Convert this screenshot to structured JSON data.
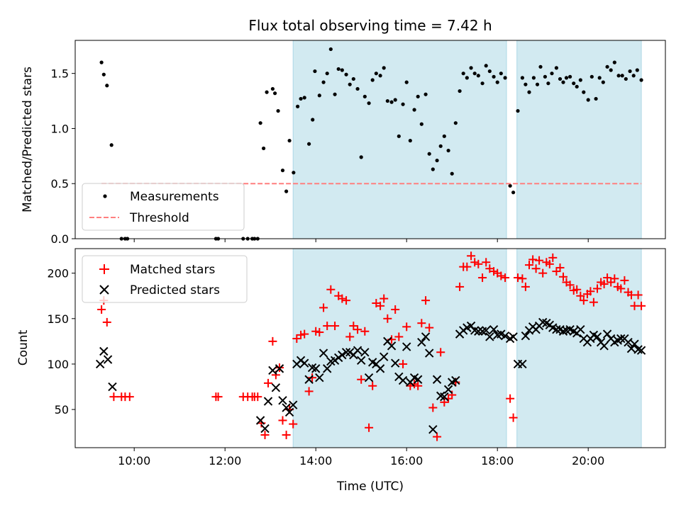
{
  "chart_data": [
    {
      "type": "scatter",
      "title": "Flux total observing time = 7.42 h",
      "xlabel": "",
      "ylabel": "Matched/Predicted stars",
      "ylim": [
        0,
        1.8
      ],
      "yticks": [
        "0.0",
        "0.5",
        "1.0",
        "1.5"
      ],
      "xlim": [
        8.7,
        21.7
      ],
      "grid": false,
      "legend_position": "lower-left",
      "shaded_intervals": [
        [
          13.5,
          18.2
        ],
        [
          18.43,
          21.17
        ]
      ],
      "shade_color": "#add8e6",
      "series": [
        {
          "name": "Measurements",
          "style": "dot",
          "color": "#000000",
          "x": [
            9.28,
            9.33,
            9.4,
            9.5,
            9.72,
            9.8,
            9.85,
            11.8,
            11.85,
            12.4,
            12.5,
            12.6,
            12.65,
            12.72,
            12.78,
            12.85,
            12.92,
            13.05,
            13.1,
            13.17,
            13.27,
            13.35,
            13.42,
            13.51,
            13.6,
            13.67,
            13.75,
            13.85,
            13.93,
            13.98,
            14.08,
            14.17,
            14.25,
            14.33,
            14.42,
            14.5,
            14.58,
            14.67,
            14.75,
            14.83,
            14.92,
            15.0,
            15.08,
            15.17,
            15.25,
            15.33,
            15.42,
            15.5,
            15.58,
            15.67,
            15.75,
            15.83,
            15.92,
            16.0,
            16.08,
            16.17,
            16.25,
            16.33,
            16.42,
            16.5,
            16.58,
            16.67,
            16.75,
            16.83,
            16.92,
            17.0,
            17.08,
            17.17,
            17.25,
            17.33,
            17.42,
            17.5,
            17.58,
            17.67,
            17.75,
            17.83,
            17.92,
            18.0,
            18.08,
            18.17,
            18.28,
            18.35,
            18.45,
            18.55,
            18.62,
            18.7,
            18.8,
            18.88,
            18.95,
            19.05,
            19.12,
            19.2,
            19.3,
            19.38,
            19.45,
            19.52,
            19.6,
            19.68,
            19.75,
            19.83,
            19.9,
            20.0,
            20.08,
            20.17,
            20.25,
            20.33,
            20.42,
            20.5,
            20.58,
            20.67,
            20.75,
            20.83,
            20.92,
            21.0,
            21.08,
            21.17
          ],
          "y": [
            1.6,
            1.49,
            1.39,
            0.85,
            0.0,
            0.0,
            0.0,
            0.0,
            0.0,
            0.0,
            0.0,
            0.0,
            0.0,
            0.0,
            1.05,
            0.82,
            1.33,
            1.36,
            1.32,
            1.16,
            0.62,
            0.43,
            0.89,
            0.6,
            1.2,
            1.27,
            1.28,
            0.86,
            1.08,
            1.52,
            1.3,
            1.42,
            1.5,
            1.72,
            1.31,
            1.54,
            1.53,
            1.49,
            1.4,
            1.45,
            1.36,
            0.74,
            1.29,
            1.23,
            1.44,
            1.5,
            1.48,
            1.55,
            1.25,
            1.24,
            1.26,
            0.93,
            1.22,
            1.42,
            0.89,
            1.17,
            1.29,
            1.04,
            1.31,
            0.77,
            0.63,
            0.71,
            0.84,
            0.93,
            0.8,
            0.59,
            1.05,
            1.34,
            1.5,
            1.46,
            1.55,
            1.5,
            1.48,
            1.41,
            1.57,
            1.52,
            1.47,
            1.42,
            1.5,
            1.46,
            0.48,
            0.42,
            1.16,
            1.46,
            1.4,
            1.33,
            1.46,
            1.4,
            1.56,
            1.47,
            1.41,
            1.5,
            1.55,
            1.45,
            1.42,
            1.46,
            1.47,
            1.41,
            1.38,
            1.44,
            1.33,
            1.26,
            1.47,
            1.27,
            1.46,
            1.42,
            1.56,
            1.53,
            1.6,
            1.48,
            1.48,
            1.45,
            1.52,
            1.48,
            1.53,
            1.44
          ]
        },
        {
          "name": "Threshold",
          "style": "dashed-line",
          "color": "#ff7f7f",
          "x": [
            9.28,
            21.17
          ],
          "y": [
            0.5,
            0.5
          ]
        }
      ]
    },
    {
      "type": "scatter",
      "title": "",
      "xlabel": "Time (UTC)",
      "ylabel": "Count",
      "ylim": [
        8,
        227
      ],
      "yticks": [
        "50",
        "100",
        "150",
        "200"
      ],
      "xlim": [
        8.7,
        21.7
      ],
      "xticks": [
        {
          "value": 10,
          "label": "10:00"
        },
        {
          "value": 12,
          "label": "12:00"
        },
        {
          "value": 14,
          "label": "14:00"
        },
        {
          "value": 16,
          "label": "16:00"
        },
        {
          "value": 18,
          "label": "18:00"
        },
        {
          "value": 20,
          "label": "20:00"
        }
      ],
      "grid": false,
      "legend_position": "top-left",
      "shaded_intervals": [
        [
          13.5,
          18.2
        ],
        [
          18.43,
          21.17
        ]
      ],
      "shade_color": "#add8e6",
      "series": [
        {
          "name": "Matched stars",
          "style": "plus",
          "color": "#ff0000",
          "x": [
            9.28,
            9.33,
            9.4,
            9.55,
            9.72,
            9.8,
            9.9,
            11.8,
            11.85,
            12.4,
            12.5,
            12.6,
            12.65,
            12.72,
            12.8,
            12.88,
            12.95,
            13.05,
            13.12,
            13.2,
            13.27,
            13.35,
            13.42,
            13.5,
            13.58,
            13.67,
            13.75,
            13.85,
            13.92,
            14.0,
            14.08,
            14.17,
            14.25,
            14.33,
            14.42,
            14.5,
            14.58,
            14.67,
            14.75,
            14.83,
            14.92,
            15.0,
            15.08,
            15.17,
            15.25,
            15.33,
            15.42,
            15.5,
            15.58,
            15.67,
            15.75,
            15.83,
            15.92,
            16.0,
            16.08,
            16.17,
            16.25,
            16.33,
            16.42,
            16.5,
            16.58,
            16.67,
            16.75,
            16.83,
            16.92,
            17.0,
            17.08,
            17.17,
            17.25,
            17.33,
            17.42,
            17.5,
            17.58,
            17.67,
            17.75,
            17.83,
            17.92,
            18.0,
            18.08,
            18.17,
            18.28,
            18.35,
            18.45,
            18.55,
            18.62,
            18.7,
            18.78,
            18.85,
            18.92,
            19.0,
            19.08,
            19.15,
            19.22,
            19.3,
            19.38,
            19.45,
            19.52,
            19.6,
            19.68,
            19.75,
            19.83,
            19.9,
            19.98,
            20.05,
            20.12,
            20.2,
            20.28,
            20.35,
            20.42,
            20.5,
            20.58,
            20.65,
            20.72,
            20.8,
            20.88,
            20.95,
            21.02,
            21.1,
            21.17
          ],
          "y": [
            160,
            170,
            146,
            64,
            64,
            64,
            64,
            64,
            64,
            64,
            64,
            64,
            64,
            64,
            35,
            22,
            79,
            125,
            88,
            96,
            38,
            22,
            50,
            34,
            128,
            132,
            133,
            70,
            85,
            136,
            135,
            162,
            142,
            182,
            142,
            175,
            172,
            170,
            130,
            142,
            138,
            83,
            136,
            30,
            76,
            167,
            164,
            172,
            150,
            127,
            160,
            130,
            100,
            141,
            76,
            78,
            76,
            145,
            170,
            140,
            52,
            20,
            113,
            58,
            62,
            66,
            80,
            185,
            207,
            207,
            219,
            212,
            210,
            195,
            212,
            205,
            202,
            200,
            197,
            195,
            62,
            41,
            195,
            194,
            185,
            209,
            215,
            205,
            214,
            200,
            212,
            210,
            217,
            202,
            206,
            196,
            190,
            187,
            181,
            182,
            175,
            170,
            177,
            180,
            168,
            183,
            190,
            188,
            195,
            190,
            194,
            185,
            183,
            192,
            179,
            176,
            164,
            176,
            164
          ]
        },
        {
          "name": "Predicted stars",
          "style": "x",
          "color": "#000000",
          "x": [
            9.25,
            9.33,
            9.42,
            9.52,
            12.78,
            12.88,
            12.95,
            13.05,
            13.12,
            13.2,
            13.27,
            13.35,
            13.42,
            13.5,
            13.58,
            13.67,
            13.75,
            13.85,
            13.92,
            14.0,
            14.08,
            14.17,
            14.25,
            14.33,
            14.42,
            14.5,
            14.58,
            14.67,
            14.75,
            14.83,
            14.92,
            15.0,
            15.08,
            15.17,
            15.25,
            15.33,
            15.42,
            15.5,
            15.58,
            15.67,
            15.75,
            15.83,
            15.92,
            16.0,
            16.08,
            16.17,
            16.25,
            16.33,
            16.42,
            16.5,
            16.58,
            16.67,
            16.75,
            16.83,
            16.92,
            17.0,
            17.08,
            17.17,
            17.25,
            17.33,
            17.42,
            17.5,
            17.58,
            17.67,
            17.75,
            17.83,
            17.92,
            18.0,
            18.08,
            18.17,
            18.28,
            18.35,
            18.45,
            18.55,
            18.62,
            18.7,
            18.78,
            18.85,
            18.92,
            19.0,
            19.08,
            19.15,
            19.22,
            19.3,
            19.38,
            19.45,
            19.52,
            19.6,
            19.68,
            19.75,
            19.83,
            19.9,
            19.98,
            20.05,
            20.12,
            20.2,
            20.28,
            20.35,
            20.42,
            20.5,
            20.58,
            20.65,
            20.72,
            20.8,
            20.88,
            20.95,
            21.02,
            21.1,
            21.17
          ],
          "y": [
            100,
            114,
            105,
            75,
            38,
            29,
            59,
            93,
            74,
            95,
            60,
            52,
            47,
            55,
            100,
            104,
            101,
            83,
            96,
            95,
            85,
            112,
            95,
            103,
            104,
            107,
            110,
            113,
            113,
            110,
            115,
            104,
            113,
            85,
            102,
            100,
            95,
            108,
            125,
            120,
            101,
            86,
            82,
            119,
            80,
            85,
            83,
            124,
            130,
            112,
            28,
            83,
            65,
            64,
            72,
            80,
            82,
            133,
            137,
            140,
            142,
            137,
            136,
            136,
            137,
            130,
            138,
            132,
            133,
            131,
            128,
            130,
            100,
            100,
            131,
            137,
            141,
            138,
            142,
            146,
            145,
            143,
            140,
            138,
            138,
            136,
            137,
            138,
            136,
            134,
            138,
            128,
            124,
            128,
            132,
            130,
            124,
            120,
            133,
            128,
            124,
            126,
            128,
            128,
            124,
            117,
            122,
            116,
            115
          ]
        }
      ]
    }
  ]
}
